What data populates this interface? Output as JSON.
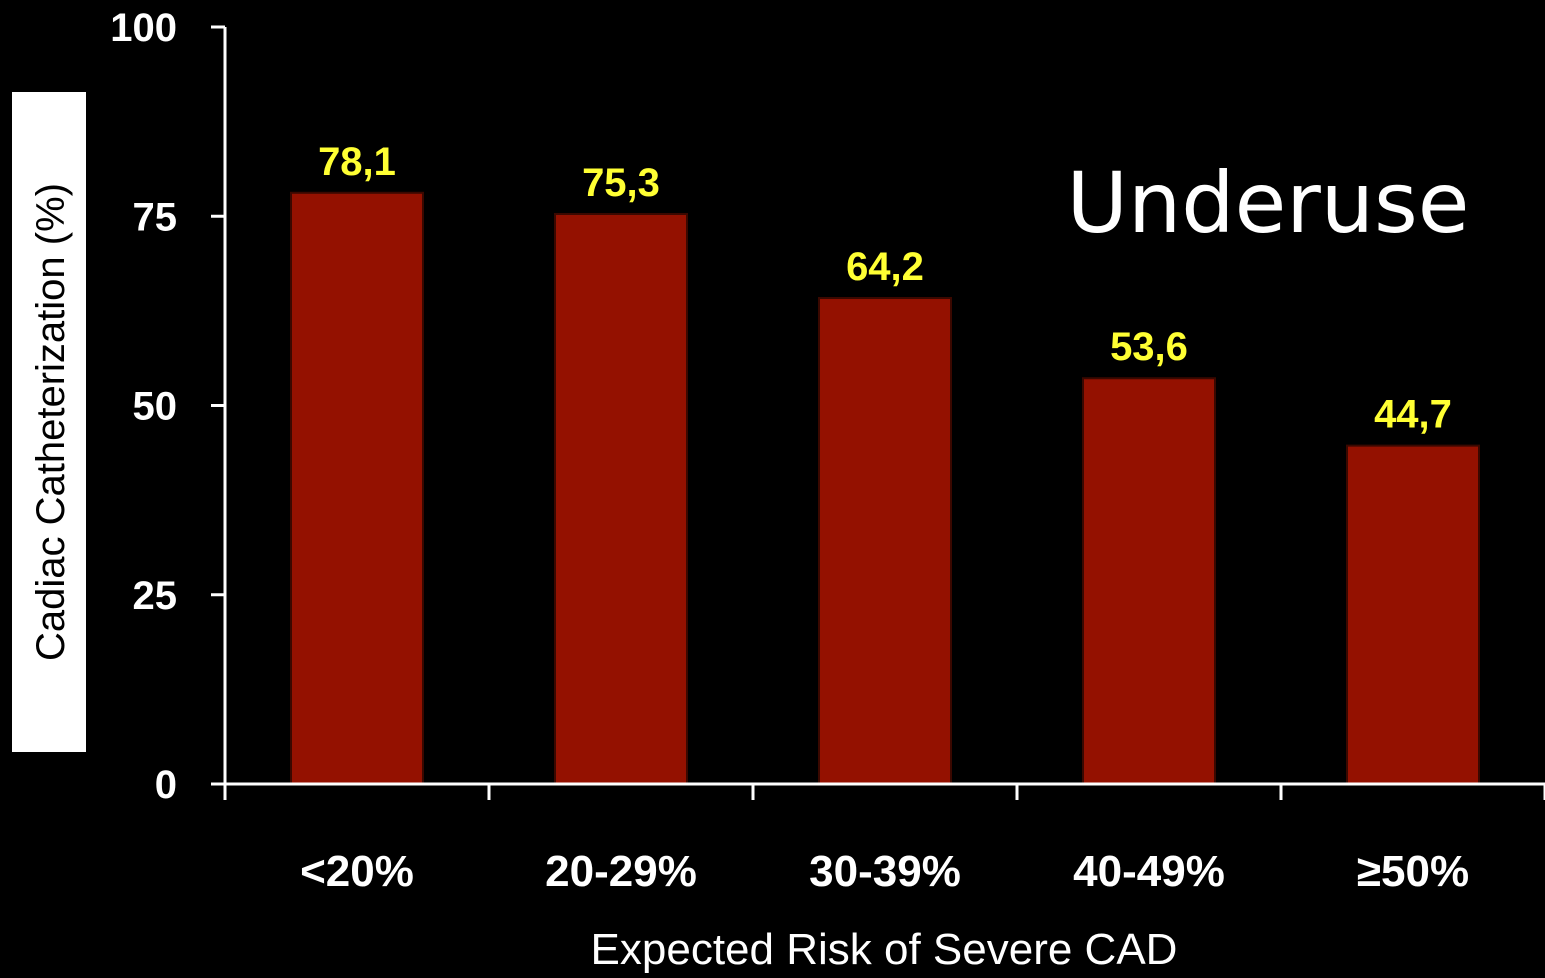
{
  "chart_data": {
    "type": "bar",
    "categories": [
      "<20%",
      "20-29%",
      "30-39%",
      "40-49%",
      "≥50%"
    ],
    "values": [
      78.1,
      75.3,
      64.2,
      53.6,
      44.7
    ],
    "data_labels": [
      "78,1",
      "75,3",
      "64,2",
      "53,6",
      "44,7"
    ],
    "xlabel": "Expected Risk of Severe CAD",
    "ylabel": "Cadiac Catheterization (%)",
    "ylim": [
      0,
      100
    ],
    "yticks": [
      0,
      25,
      50,
      75,
      100
    ],
    "annotation": "Underuse",
    "grid": false,
    "legend": "none",
    "colors": {
      "background": "#000000",
      "bar": "#941100",
      "data_label": "#ffff33",
      "axis": "#ffffff",
      "ylabel_box": "#ffffff"
    }
  }
}
